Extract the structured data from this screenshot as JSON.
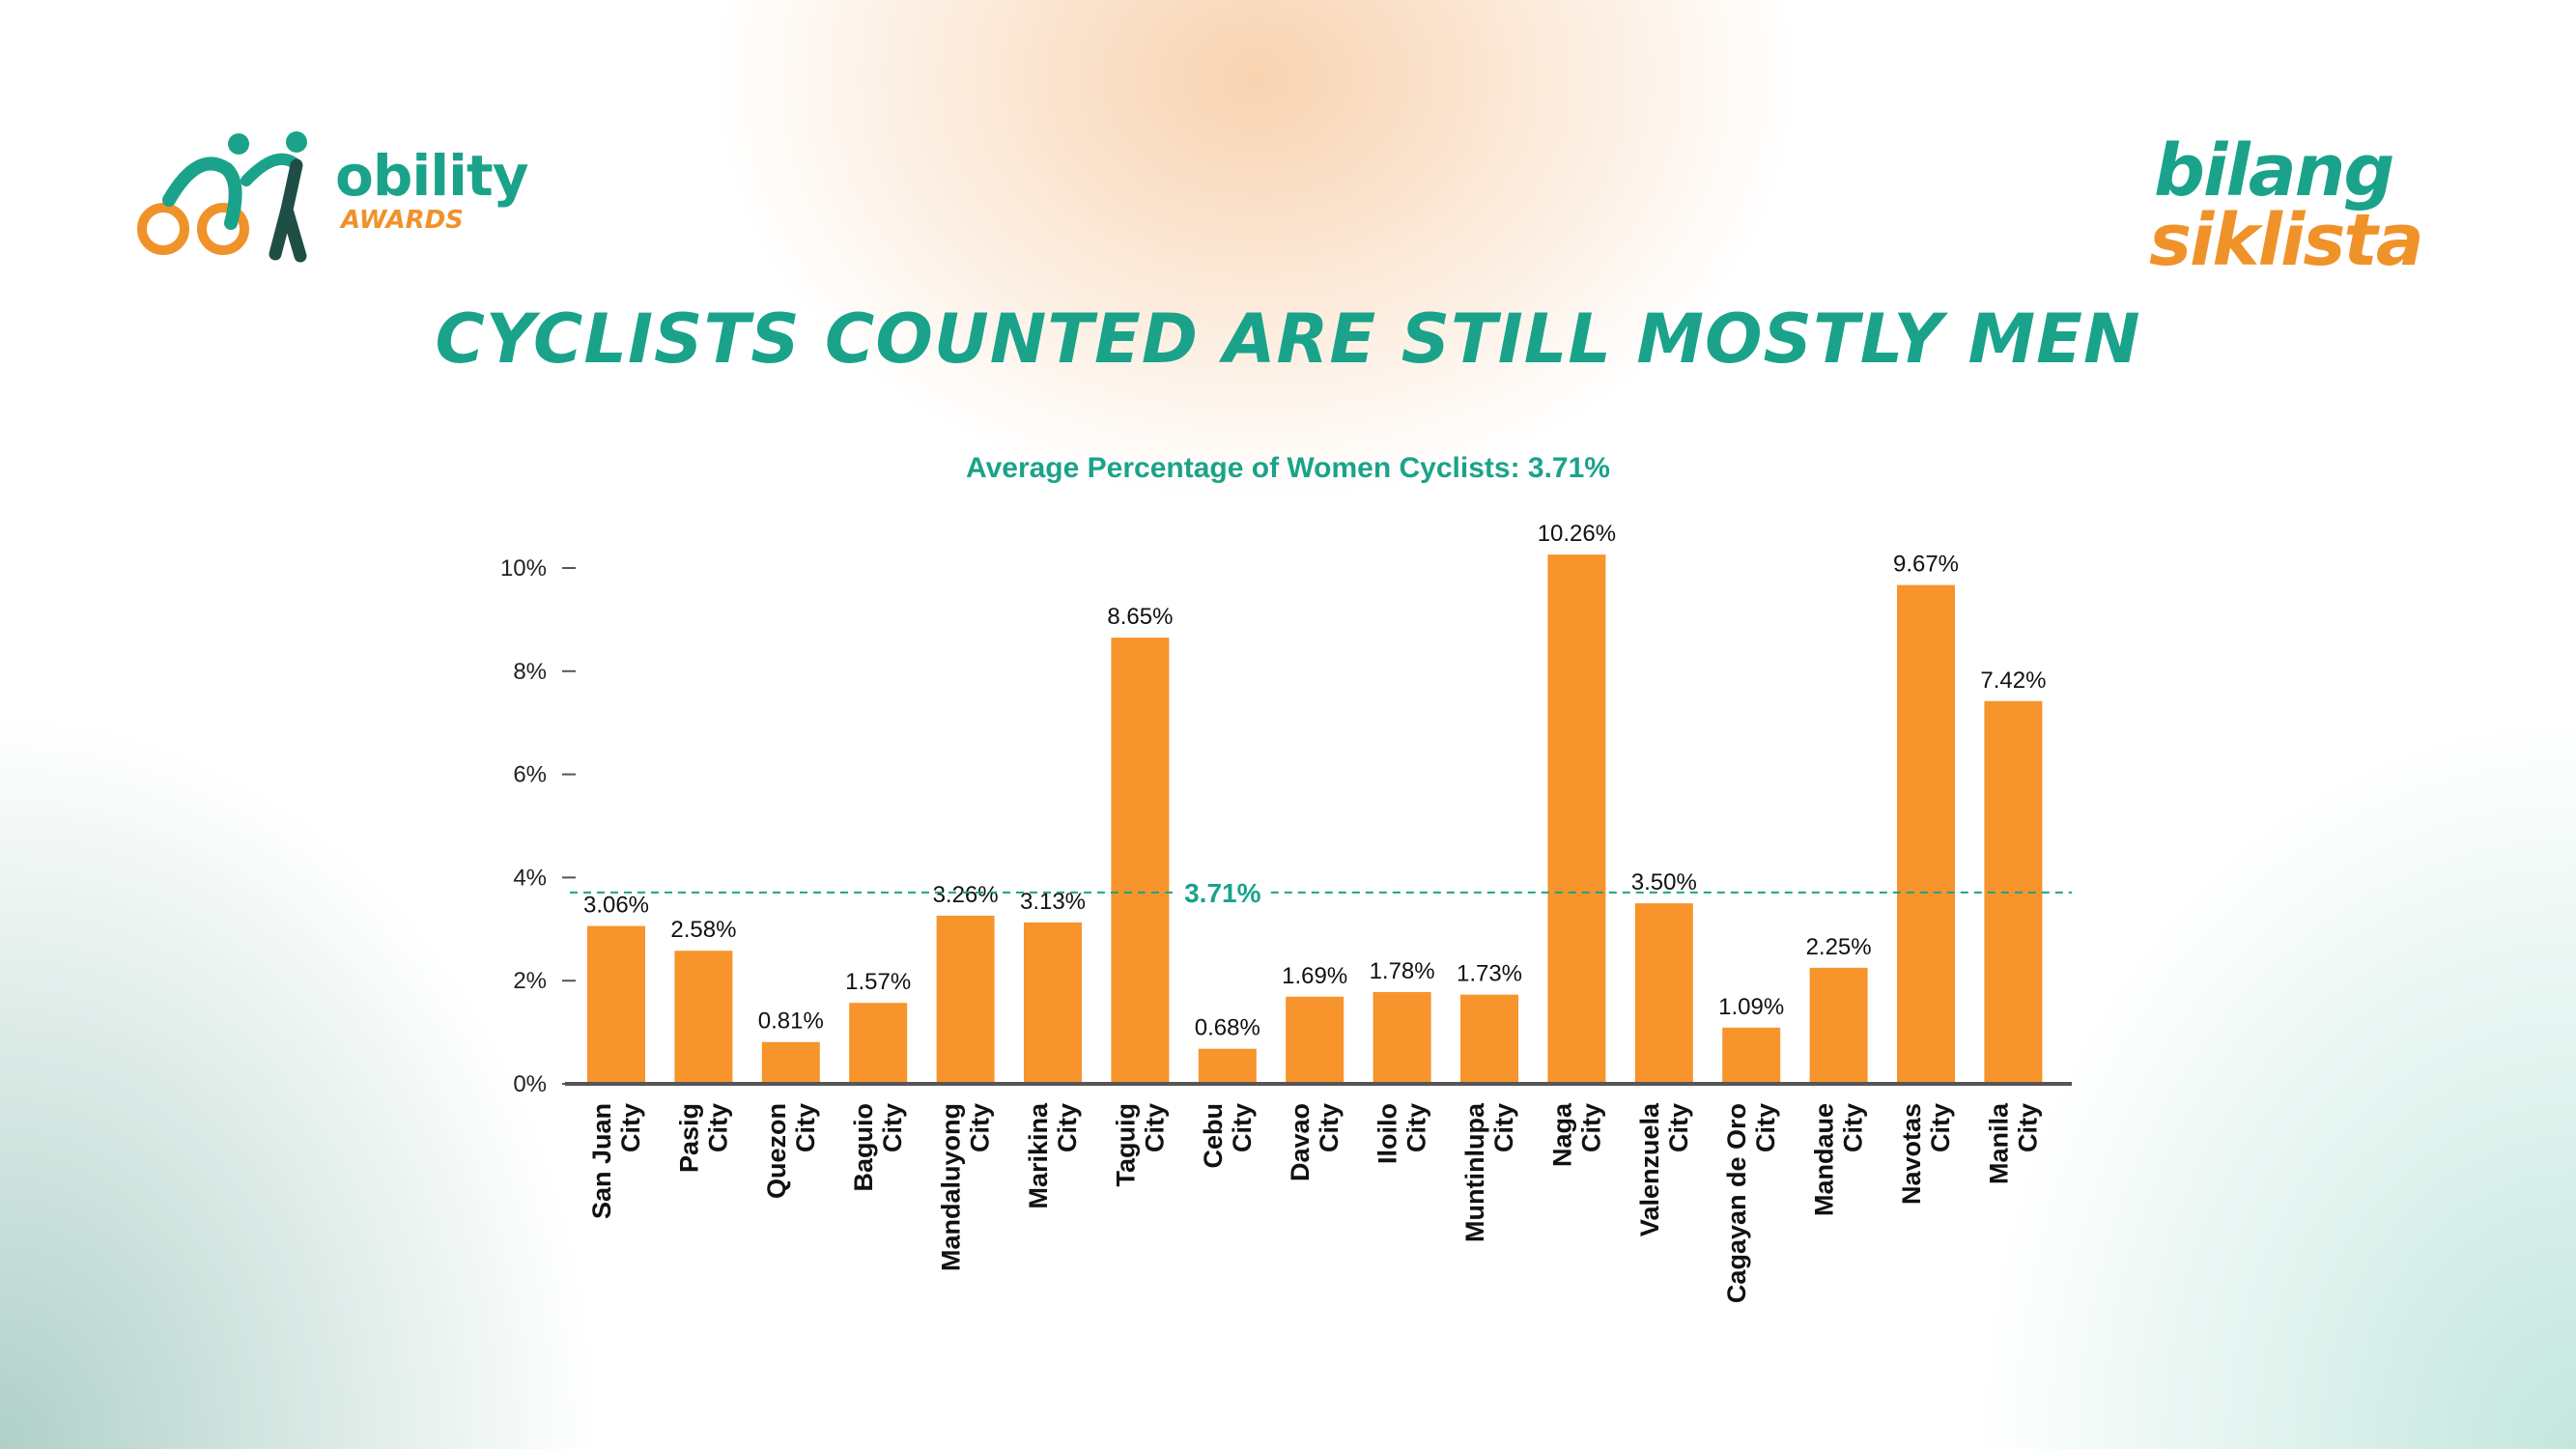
{
  "logos": {
    "left": {
      "word": "obility",
      "sub": "AWARDS"
    },
    "right": {
      "line1": "bilang",
      "line2": "siklista"
    }
  },
  "header": {
    "title": "CYCLISTS COUNTED ARE STILL MOSTLY MEN",
    "subtitle": "Average Percentage of Women Cyclists: 3.71%"
  },
  "colors": {
    "bar": "#f7942b",
    "accent": "#1aa38a",
    "secondary": "#f0922a",
    "axis": "#555555"
  },
  "chart_data": {
    "type": "bar",
    "categories": [
      [
        "San Juan",
        "City"
      ],
      [
        "Pasig",
        "City"
      ],
      [
        "Quezon",
        "City"
      ],
      [
        "Baguio",
        "City"
      ],
      [
        "Mandaluyong",
        "City"
      ],
      [
        "Marikina",
        "City"
      ],
      [
        "Taguig",
        "City"
      ],
      [
        "Cebu",
        "City"
      ],
      [
        "Davao",
        "City"
      ],
      [
        "Iloilo",
        "City"
      ],
      [
        "Muntinlupa",
        "City"
      ],
      [
        "Naga",
        "City"
      ],
      [
        "Valenzuela",
        "City"
      ],
      [
        "Cagayan de Oro",
        "City"
      ],
      [
        "Mandaue",
        "City"
      ],
      [
        "Navotas",
        "City"
      ],
      [
        "Manila",
        "City"
      ]
    ],
    "values": [
      3.06,
      2.58,
      0.81,
      1.57,
      3.26,
      3.13,
      8.65,
      0.68,
      1.69,
      1.78,
      1.73,
      10.26,
      3.5,
      1.09,
      2.25,
      9.67,
      7.42
    ],
    "value_labels": [
      "3.06%",
      "2.58%",
      "0.81%",
      "1.57%",
      "3.26%",
      "3.13%",
      "8.65%",
      "0.68%",
      "1.69%",
      "1.78%",
      "1.73%",
      "10.26%",
      "3.50%",
      "1.09%",
      "2.25%",
      "9.67%",
      "7.42%"
    ],
    "yticks": [
      0,
      2,
      4,
      6,
      8,
      10
    ],
    "ytick_labels": [
      "0%",
      "2%",
      "4%",
      "6%",
      "8%",
      "10%"
    ],
    "ylim": [
      0,
      10.5
    ],
    "average": {
      "value": 3.71,
      "label": "3.71%"
    },
    "grid": false
  }
}
